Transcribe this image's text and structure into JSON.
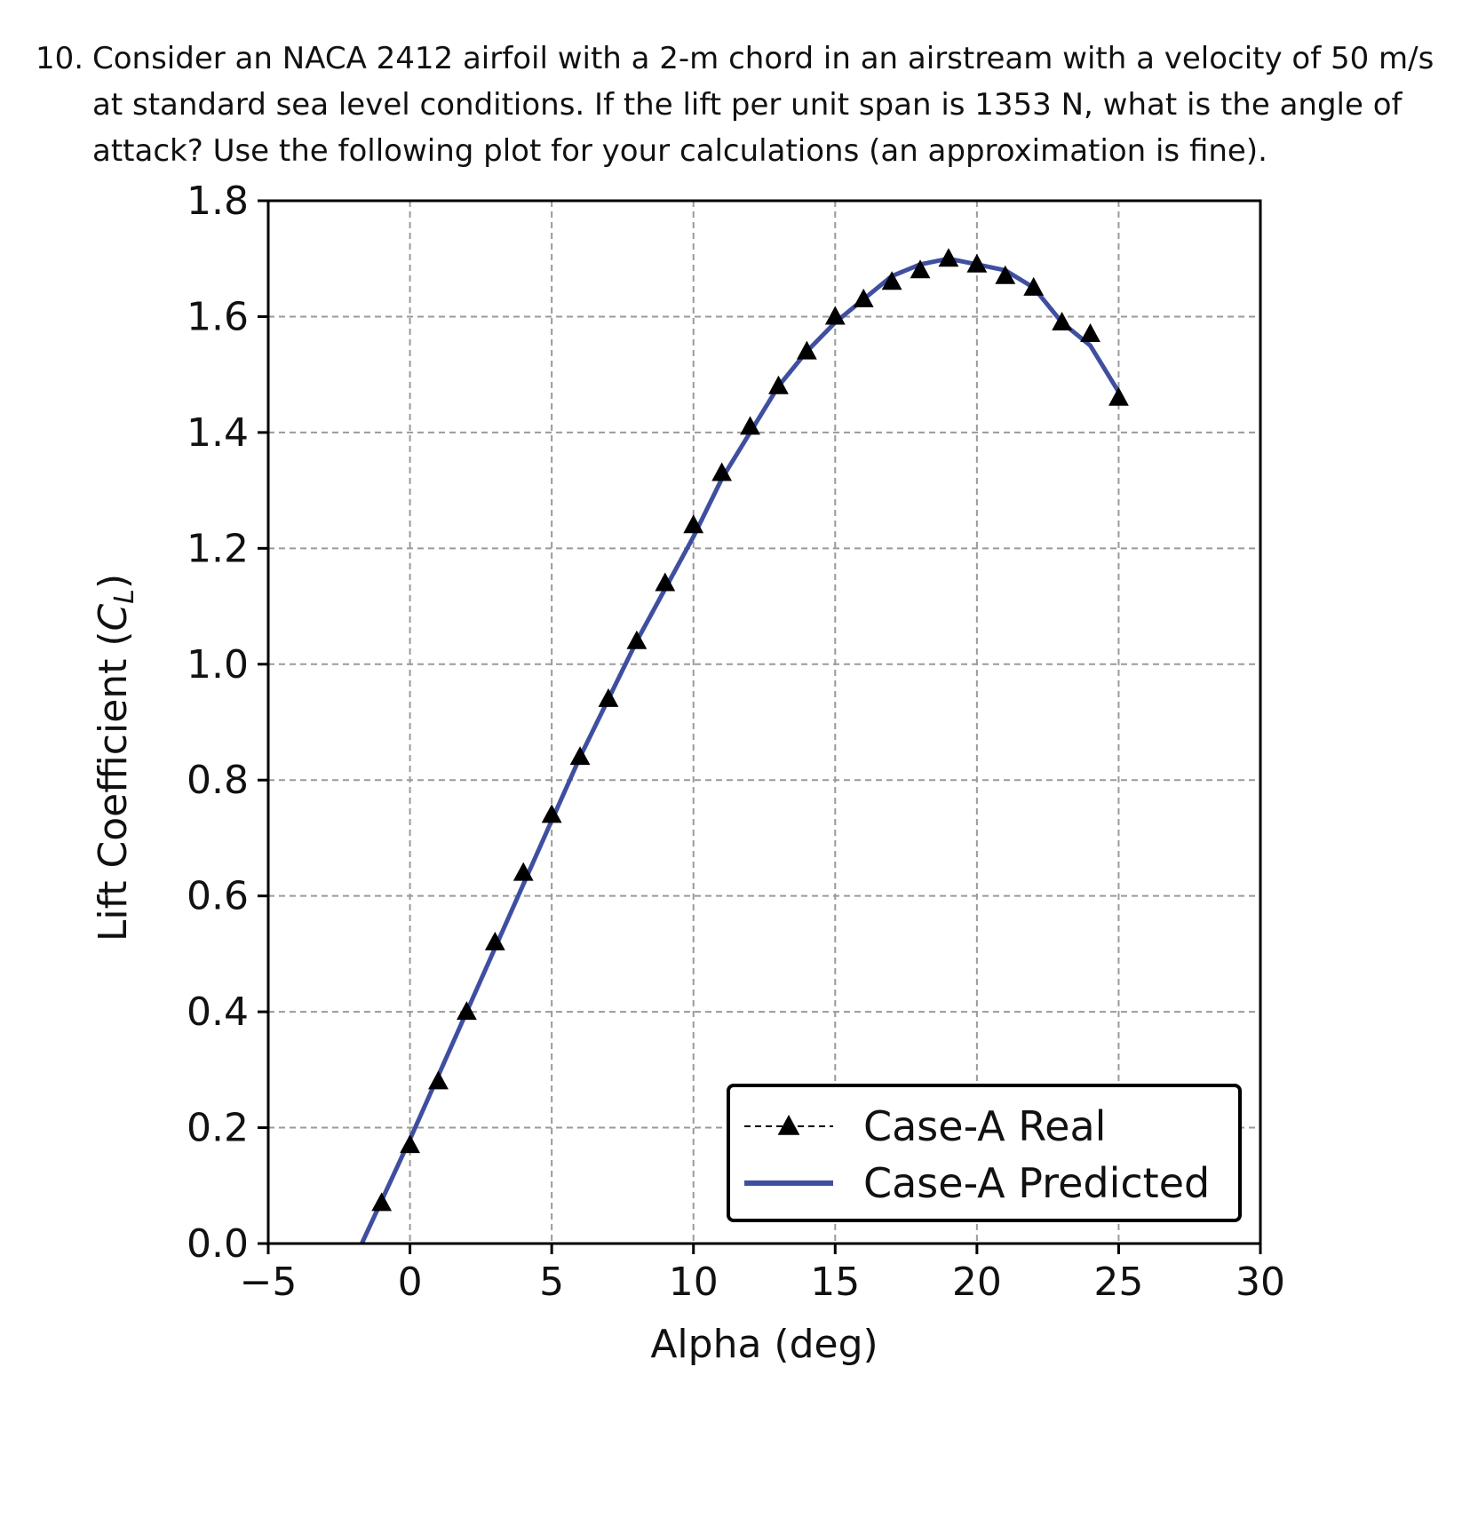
{
  "question": {
    "number": "10.",
    "text": "Consider an NACA 2412 airfoil with a 2-m chord in an airstream with a velocity of 50 m/s at standard sea level conditions. If the lift per unit span is 1353 N, what is the angle of attack? Use the following plot for your calculations (an approximation is fine)."
  },
  "chart_data": {
    "type": "line",
    "title": "",
    "xlabel": "Alpha (deg)",
    "ylabel_main": "Lift Coefficient (",
    "ylabel_symbol": "C",
    "ylabel_sub": "L",
    "ylabel_close": ")",
    "xlim": [
      -5,
      30
    ],
    "ylim": [
      0.0,
      1.8
    ],
    "xticks": [
      -5,
      0,
      5,
      10,
      15,
      20,
      25,
      30
    ],
    "xtick_labels": [
      "−5",
      "0",
      "5",
      "10",
      "15",
      "20",
      "25",
      "30"
    ],
    "yticks": [
      0.0,
      0.2,
      0.4,
      0.6,
      0.8,
      1.0,
      1.2,
      1.4,
      1.6,
      1.8
    ],
    "ytick_labels": [
      "0.0",
      "0.2",
      "0.4",
      "0.6",
      "0.8",
      "1.0",
      "1.2",
      "1.4",
      "1.6",
      "1.8"
    ],
    "grid": true,
    "legend_position": "lower-right",
    "series": [
      {
        "name": "Case-A Real",
        "style": "triangle-markers-dashed",
        "color": "#000000",
        "x": [
          -1,
          0,
          1,
          2,
          3,
          4,
          5,
          6,
          7,
          8,
          9,
          10,
          11,
          12,
          13,
          14,
          15,
          16,
          17,
          18,
          19,
          20,
          21,
          22,
          23,
          24,
          25
        ],
        "y": [
          0.07,
          0.17,
          0.28,
          0.4,
          0.52,
          0.64,
          0.74,
          0.84,
          0.94,
          1.04,
          1.14,
          1.24,
          1.33,
          1.41,
          1.48,
          1.54,
          1.6,
          1.63,
          1.66,
          1.68,
          1.7,
          1.69,
          1.67,
          1.65,
          1.59,
          1.57,
          1.46
        ]
      },
      {
        "name": "Case-A Predicted",
        "style": "solid-line",
        "color": "#3f4fa0",
        "x": [
          -1.7,
          0,
          1,
          2,
          3,
          4,
          5,
          6,
          7,
          8,
          9,
          10,
          11,
          12,
          13,
          14,
          15,
          16,
          17,
          18,
          19,
          20,
          21,
          22,
          23,
          24,
          25
        ],
        "y": [
          0.0,
          0.18,
          0.29,
          0.4,
          0.51,
          0.62,
          0.73,
          0.84,
          0.94,
          1.04,
          1.13,
          1.22,
          1.32,
          1.4,
          1.48,
          1.54,
          1.59,
          1.63,
          1.67,
          1.69,
          1.7,
          1.69,
          1.68,
          1.65,
          1.59,
          1.55,
          1.47
        ]
      }
    ]
  }
}
